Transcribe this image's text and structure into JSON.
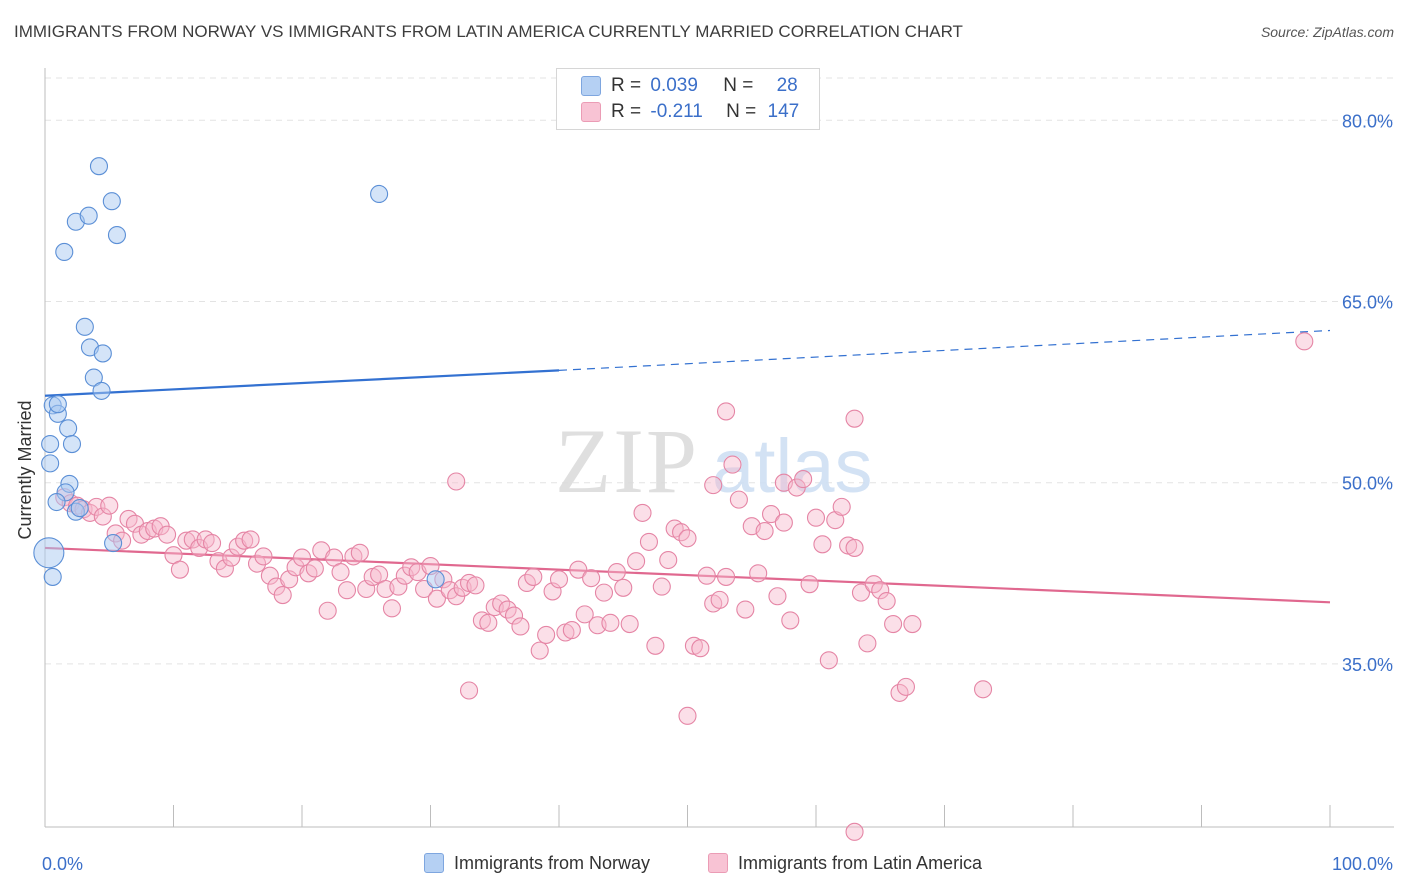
{
  "title": "IMMIGRANTS FROM NORWAY VS IMMIGRANTS FROM LATIN AMERICA CURRENTLY MARRIED CORRELATION CHART",
  "source": "Source: ZipAtlas.com",
  "watermark": {
    "zip": "ZIP",
    "atlas": "atlas"
  },
  "colors": {
    "blue_fill": "#a9c9f2",
    "blue_stroke": "#5b8fd6",
    "blue_line": "#3371d1",
    "pink_fill": "#f6b8cc",
    "pink_stroke": "#e585a5",
    "pink_line": "#e0688f",
    "axis_text": "#3b6fc9",
    "grid": "#e3e3e3"
  },
  "legend": {
    "rows": [
      {
        "r_label": "R =",
        "r_value": "0.039",
        "n_label": "N =",
        "n_value": "28"
      },
      {
        "r_label": "R =",
        "r_value": "-0.211",
        "n_label": "N =",
        "n_value": "147"
      }
    ]
  },
  "bottom_legend": [
    "Immigrants from Norway",
    "Immigrants from Latin America"
  ],
  "chart_data": {
    "type": "scatter",
    "title": "IMMIGRANTS FROM NORWAY VS IMMIGRANTS FROM LATIN AMERICA CURRENTLY MARRIED CORRELATION CHART",
    "xlabel": "",
    "ylabel": "Currently Married",
    "xlim": [
      0,
      100
    ],
    "ylim": [
      21.5,
      83.5
    ],
    "x_tick_labels": [
      "0.0%",
      "100.0%"
    ],
    "y_ticks": [
      35,
      50,
      65,
      80
    ],
    "y_tick_labels": [
      "35.0%",
      "50.0%",
      "65.0%",
      "80.0%"
    ],
    "grid": true,
    "legend_position": "top-center",
    "series": [
      {
        "name": "Immigrants from Norway",
        "color": "blue",
        "points": [
          [
            0.3,
            44.2
          ],
          [
            0.6,
            42.2
          ],
          [
            0.4,
            51.6
          ],
          [
            0.4,
            53.2
          ],
          [
            0.6,
            56.4
          ],
          [
            1.0,
            55.7
          ],
          [
            1.0,
            56.5
          ],
          [
            1.8,
            54.5
          ],
          [
            2.1,
            53.2
          ],
          [
            1.9,
            49.9
          ],
          [
            1.6,
            49.2
          ],
          [
            2.4,
            47.6
          ],
          [
            2.7,
            47.9
          ],
          [
            3.1,
            62.9
          ],
          [
            3.8,
            58.7
          ],
          [
            3.5,
            61.2
          ],
          [
            4.5,
            60.7
          ],
          [
            4.4,
            57.6
          ],
          [
            1.5,
            69.1
          ],
          [
            2.4,
            71.6
          ],
          [
            3.4,
            72.1
          ],
          [
            4.2,
            76.2
          ],
          [
            5.2,
            73.3
          ],
          [
            5.6,
            70.5
          ],
          [
            5.3,
            45.0
          ],
          [
            26.0,
            73.9
          ],
          [
            30.4,
            42.0
          ],
          [
            0.9,
            48.4
          ]
        ],
        "trend": {
          "x": [
            0,
            40,
            100
          ],
          "y": [
            57.2,
            59.3,
            62.6
          ],
          "dashed_from_x": 40
        }
      },
      {
        "name": "Immigrants from Latin America",
        "color": "pink",
        "points": [
          [
            1.5,
            48.8
          ],
          [
            2.0,
            48.3
          ],
          [
            2.5,
            48.1
          ],
          [
            3.0,
            47.8
          ],
          [
            3.5,
            47.5
          ],
          [
            4.0,
            48.0
          ],
          [
            4.5,
            47.2
          ],
          [
            5.0,
            48.1
          ],
          [
            5.5,
            45.8
          ],
          [
            6.0,
            45.2
          ],
          [
            6.5,
            47.0
          ],
          [
            7.0,
            46.6
          ],
          [
            7.5,
            45.7
          ],
          [
            8.0,
            46.0
          ],
          [
            8.5,
            46.2
          ],
          [
            9.0,
            46.4
          ],
          [
            9.5,
            45.7
          ],
          [
            10.0,
            44.0
          ],
          [
            10.5,
            42.8
          ],
          [
            11.0,
            45.2
          ],
          [
            11.5,
            45.3
          ],
          [
            12.0,
            44.6
          ],
          [
            12.5,
            45.3
          ],
          [
            13.0,
            45.0
          ],
          [
            13.5,
            43.5
          ],
          [
            14.0,
            42.9
          ],
          [
            14.5,
            43.8
          ],
          [
            15.0,
            44.7
          ],
          [
            15.5,
            45.2
          ],
          [
            16.0,
            45.3
          ],
          [
            16.5,
            43.3
          ],
          [
            17.0,
            43.9
          ],
          [
            17.5,
            42.3
          ],
          [
            18.0,
            41.4
          ],
          [
            18.5,
            40.7
          ],
          [
            19.0,
            42.0
          ],
          [
            19.5,
            43.0
          ],
          [
            20.0,
            43.8
          ],
          [
            20.5,
            42.5
          ],
          [
            21.0,
            42.9
          ],
          [
            21.5,
            44.4
          ],
          [
            22.0,
            39.4
          ],
          [
            22.5,
            43.8
          ],
          [
            23.0,
            42.6
          ],
          [
            23.5,
            41.1
          ],
          [
            24.0,
            43.9
          ],
          [
            24.5,
            44.2
          ],
          [
            25.0,
            41.2
          ],
          [
            25.5,
            42.2
          ],
          [
            26.0,
            42.4
          ],
          [
            26.5,
            41.2
          ],
          [
            27.0,
            39.6
          ],
          [
            27.5,
            41.4
          ],
          [
            28.0,
            42.3
          ],
          [
            28.5,
            43.0
          ],
          [
            29.0,
            42.6
          ],
          [
            29.5,
            41.2
          ],
          [
            30.0,
            43.1
          ],
          [
            30.5,
            40.4
          ],
          [
            31.0,
            42.0
          ],
          [
            31.5,
            41.1
          ],
          [
            32.0,
            40.6
          ],
          [
            32.5,
            41.3
          ],
          [
            33.0,
            41.7
          ],
          [
            33.5,
            41.5
          ],
          [
            34.0,
            38.6
          ],
          [
            34.5,
            38.4
          ],
          [
            35.0,
            39.7
          ],
          [
            35.5,
            40.0
          ],
          [
            36.0,
            39.5
          ],
          [
            36.5,
            39.0
          ],
          [
            37.0,
            38.1
          ],
          [
            37.5,
            41.7
          ],
          [
            38.0,
            42.2
          ],
          [
            38.5,
            36.1
          ],
          [
            39.0,
            37.4
          ],
          [
            39.5,
            41.0
          ],
          [
            40.0,
            42.0
          ],
          [
            40.5,
            37.6
          ],
          [
            41.0,
            37.8
          ],
          [
            41.5,
            42.8
          ],
          [
            42.0,
            39.1
          ],
          [
            42.5,
            42.1
          ],
          [
            43.0,
            38.2
          ],
          [
            43.5,
            40.9
          ],
          [
            44.0,
            38.4
          ],
          [
            44.5,
            42.6
          ],
          [
            45.0,
            41.3
          ],
          [
            45.5,
            38.3
          ],
          [
            46.0,
            43.5
          ],
          [
            46.5,
            47.5
          ],
          [
            47.0,
            45.1
          ],
          [
            47.5,
            36.5
          ],
          [
            48.0,
            41.4
          ],
          [
            48.5,
            43.6
          ],
          [
            49.0,
            46.2
          ],
          [
            49.5,
            45.9
          ],
          [
            50.0,
            45.4
          ],
          [
            50.5,
            36.5
          ],
          [
            51.0,
            36.3
          ],
          [
            51.5,
            42.3
          ],
          [
            52.0,
            40.0
          ],
          [
            52.5,
            40.3
          ],
          [
            53.0,
            42.2
          ],
          [
            53.5,
            51.5
          ],
          [
            54.0,
            48.6
          ],
          [
            54.5,
            39.5
          ],
          [
            55.0,
            46.4
          ],
          [
            55.5,
            42.5
          ],
          [
            56.0,
            46.0
          ],
          [
            56.5,
            47.4
          ],
          [
            57.0,
            40.6
          ],
          [
            57.5,
            50.0
          ],
          [
            58.0,
            38.6
          ],
          [
            58.5,
            49.6
          ],
          [
            59.0,
            50.3
          ],
          [
            59.5,
            41.6
          ],
          [
            60.0,
            47.1
          ],
          [
            60.5,
            44.9
          ],
          [
            61.0,
            35.3
          ],
          [
            61.5,
            46.9
          ],
          [
            62.0,
            48.0
          ],
          [
            62.5,
            44.8
          ],
          [
            63.0,
            44.6
          ],
          [
            63.5,
            40.9
          ],
          [
            64.0,
            36.7
          ],
          [
            64.5,
            41.6
          ],
          [
            65.0,
            41.1
          ],
          [
            65.5,
            40.2
          ],
          [
            66.0,
            38.3
          ],
          [
            66.5,
            32.6
          ],
          [
            67.0,
            33.1
          ],
          [
            67.5,
            38.3
          ],
          [
            73.0,
            32.9
          ],
          [
            98.0,
            61.7
          ],
          [
            53.0,
            55.9
          ],
          [
            63.0,
            55.3
          ],
          [
            50.0,
            30.7
          ],
          [
            63.0,
            21.1
          ],
          [
            33.0,
            32.8
          ],
          [
            32.0,
            50.1
          ],
          [
            52.0,
            49.8
          ],
          [
            57.5,
            46.7
          ]
        ],
        "trend": {
          "x": [
            0,
            100
          ],
          "y": [
            44.6,
            40.1
          ]
        }
      }
    ]
  }
}
